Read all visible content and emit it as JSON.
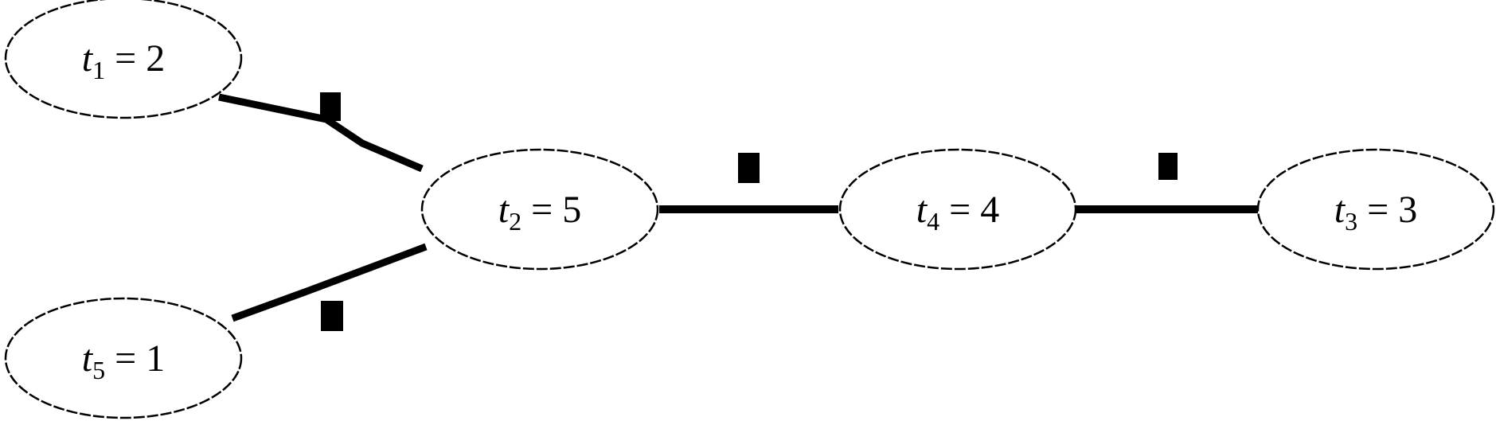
{
  "nodes": [
    {
      "id": "t1",
      "var": "t",
      "sub": "1",
      "eq": " = 2"
    },
    {
      "id": "t2",
      "var": "t",
      "sub": "2",
      "eq": " = 5"
    },
    {
      "id": "t4",
      "var": "t",
      "sub": "4",
      "eq": " = 4"
    },
    {
      "id": "t3",
      "var": "t",
      "sub": "3",
      "eq": " = 3"
    },
    {
      "id": "t5",
      "var": "t",
      "sub": "5",
      "eq": " = 1"
    }
  ],
  "edges": [
    {
      "id": "t1-t2",
      "from": "t1",
      "to": "t2"
    },
    {
      "id": "t2-t4",
      "from": "t2",
      "to": "t4"
    },
    {
      "id": "t4-t3",
      "from": "t4",
      "to": "t3"
    },
    {
      "id": "t5-t2",
      "from": "t5",
      "to": "t2"
    }
  ],
  "colors": {
    "stroke": "#000000",
    "fill": "#ffffff"
  }
}
